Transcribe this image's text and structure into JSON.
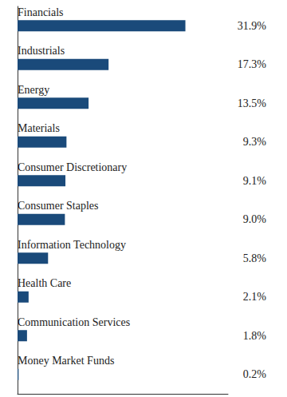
{
  "chart_data": {
    "type": "bar",
    "orientation": "horizontal",
    "categories": [
      "Financials",
      "Industrials",
      "Energy",
      "Materials",
      "Consumer Discretionary",
      "Consumer Staples",
      "Information Technology",
      "Health Care",
      "Communication Services",
      "Money Market Funds"
    ],
    "values": [
      31.9,
      17.3,
      13.5,
      9.3,
      9.1,
      9.0,
      5.8,
      2.1,
      1.8,
      0.2
    ],
    "value_labels": [
      "31.9%",
      "17.3%",
      "13.5%",
      "9.3%",
      "9.1%",
      "9.0%",
      "5.8%",
      "2.1%",
      "1.8%",
      "0.2%"
    ],
    "color": "#1a4a7a",
    "xlim": [
      0,
      40
    ],
    "grid": false,
    "data_labels": true,
    "tick_labels": false
  }
}
